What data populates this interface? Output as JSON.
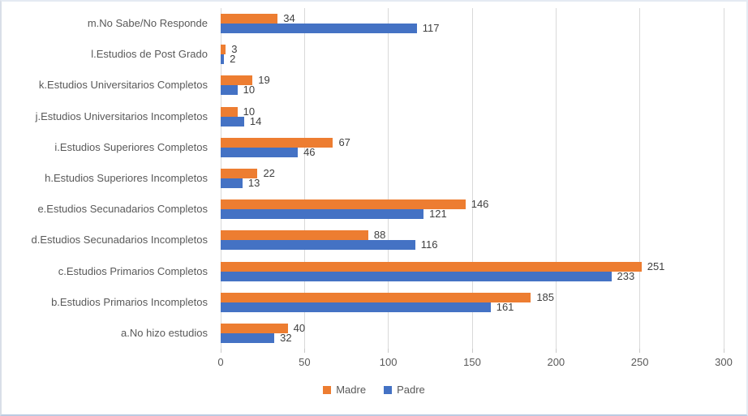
{
  "chart_data": {
    "type": "bar",
    "orientation": "horizontal",
    "title": "",
    "xlabel": "",
    "ylabel": "",
    "categories_order": "top-to-bottom",
    "categories": [
      "m.No Sabe/No Responde",
      "l.Estudios de Post Grado",
      "k.Estudios Universitarios Completos",
      "j.Estudios Universitarios Incompletos",
      "i.Estudios Superiores Completos",
      "h.Estudios Superiores Incompletos",
      "e.Estudios Secunadarios Completos",
      "d.Estudios Secunadarios Incompletos",
      "c.Estudios Primarios Completos",
      "b.Estudios Primarios Incompletos",
      "a.No hizo estudios"
    ],
    "series": [
      {
        "name": "Madre",
        "color": "#ED7D31",
        "values": [
          34,
          3,
          19,
          10,
          67,
          22,
          146,
          88,
          251,
          185,
          40
        ]
      },
      {
        "name": "Padre",
        "color": "#4472C4",
        "values": [
          117,
          2,
          10,
          14,
          46,
          13,
          121,
          116,
          233,
          161,
          32
        ]
      }
    ],
    "xlim": [
      0,
      300
    ],
    "xticks": [
      0,
      50,
      100,
      150,
      200,
      250,
      300
    ],
    "grid": true,
    "data_labels": true,
    "legend_position": "bottom"
  },
  "colors": {
    "background": "#FFFFFF",
    "gridline": "#D9D9D9",
    "axis_text": "#595959",
    "data_label_text": "#404040",
    "madre": "#ED7D31",
    "padre": "#4472C4"
  }
}
